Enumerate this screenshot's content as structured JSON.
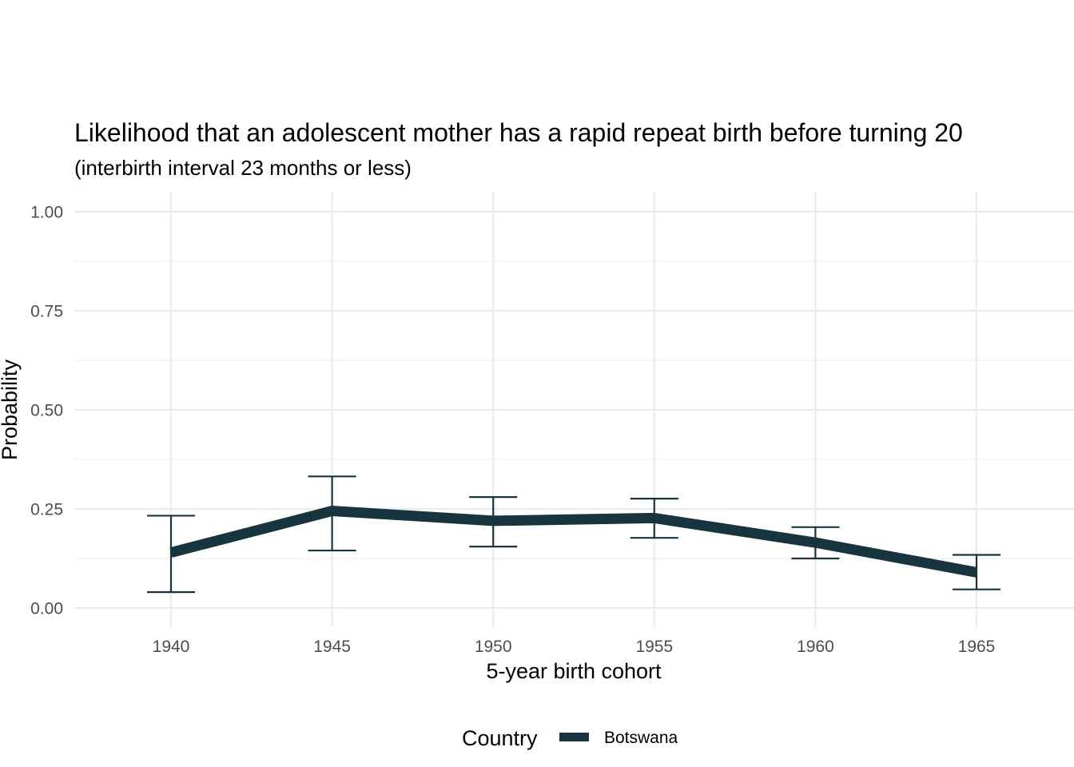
{
  "chart_data": {
    "type": "line",
    "title": "Likelihood that an adolescent mother has a rapid repeat birth before turning 20",
    "subtitle": "(interbirth interval 23 months or less)",
    "xlabel": "5-year birth cohort",
    "ylabel": "Probability",
    "x": [
      1940,
      1945,
      1950,
      1955,
      1960,
      1965
    ],
    "x_ticks": [
      "1940",
      "1945",
      "1950",
      "1955",
      "1960",
      "1965"
    ],
    "y_ticks": [
      "0.00",
      "0.25",
      "0.50",
      "0.75",
      "1.00"
    ],
    "ylim": [
      0,
      1
    ],
    "xlim": [
      1937,
      1968
    ],
    "grid": true,
    "legend": {
      "title": "Country",
      "position": "bottom"
    },
    "series": [
      {
        "name": "Botswana",
        "color": "#17353f",
        "values": [
          0.14,
          0.245,
          0.22,
          0.227,
          0.165,
          0.09
        ],
        "lower": [
          0.04,
          0.145,
          0.155,
          0.177,
          0.125,
          0.047
        ],
        "upper": [
          0.233,
          0.332,
          0.28,
          0.276,
          0.204,
          0.134
        ]
      }
    ]
  }
}
